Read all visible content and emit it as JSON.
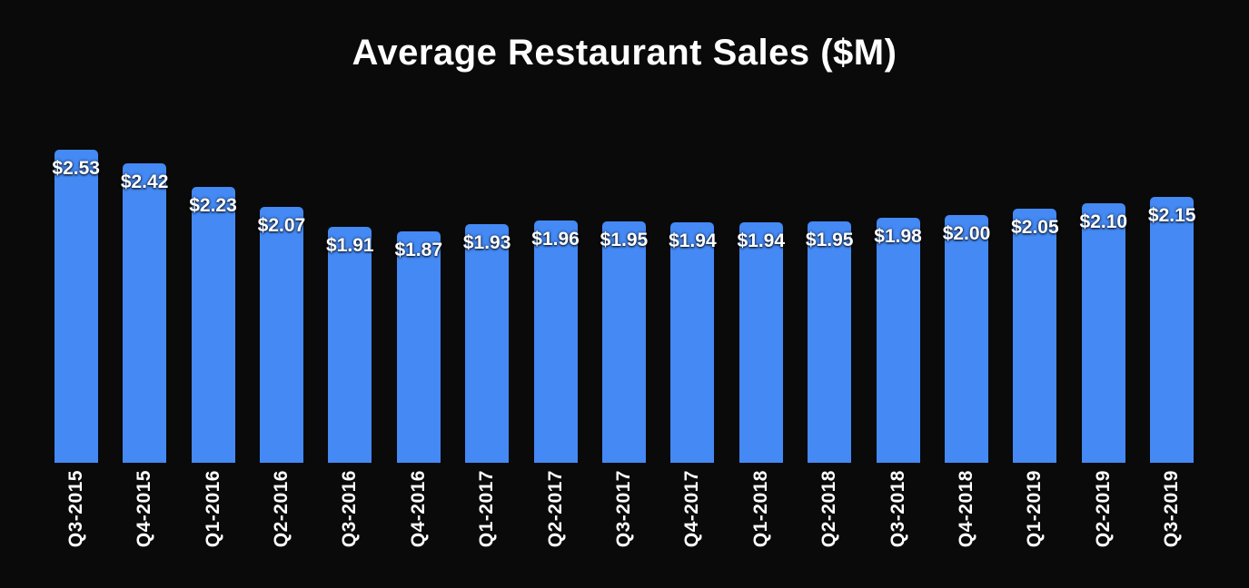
{
  "colors": {
    "background": "#0a0a0a",
    "bar": "#4489f4",
    "text": "#ffffff"
  },
  "chart_data": {
    "type": "bar",
    "title": "Average Restaurant Sales ($M)",
    "categories": [
      "Q3-2015",
      "Q4-2015",
      "Q1-2016",
      "Q2-2016",
      "Q3-2016",
      "Q4-2016",
      "Q1-2017",
      "Q2-2017",
      "Q3-2017",
      "Q4-2017",
      "Q1-2018",
      "Q2-2018",
      "Q3-2018",
      "Q4-2018",
      "Q1-2019",
      "Q2-2019",
      "Q3-2019"
    ],
    "values": [
      2.53,
      2.42,
      2.23,
      2.07,
      1.91,
      1.87,
      1.93,
      1.96,
      1.95,
      1.94,
      1.94,
      1.95,
      1.98,
      2.0,
      2.05,
      2.1,
      2.15
    ],
    "labels": [
      "$2.53",
      "$2.42",
      "$2.23",
      "$2.07",
      "$1.91",
      "$1.87",
      "$1.93",
      "$1.96",
      "$1.95",
      "$1.94",
      "$1.94",
      "$1.95",
      "$1.98",
      "$2.00",
      "$2.05",
      "$2.10",
      "$2.15"
    ],
    "xlabel": "",
    "ylabel": "",
    "ylim": [
      0,
      2.6
    ],
    "grid": false,
    "legend": "none",
    "data_label_position": "inside-top",
    "bar_color": "#4489f4"
  }
}
